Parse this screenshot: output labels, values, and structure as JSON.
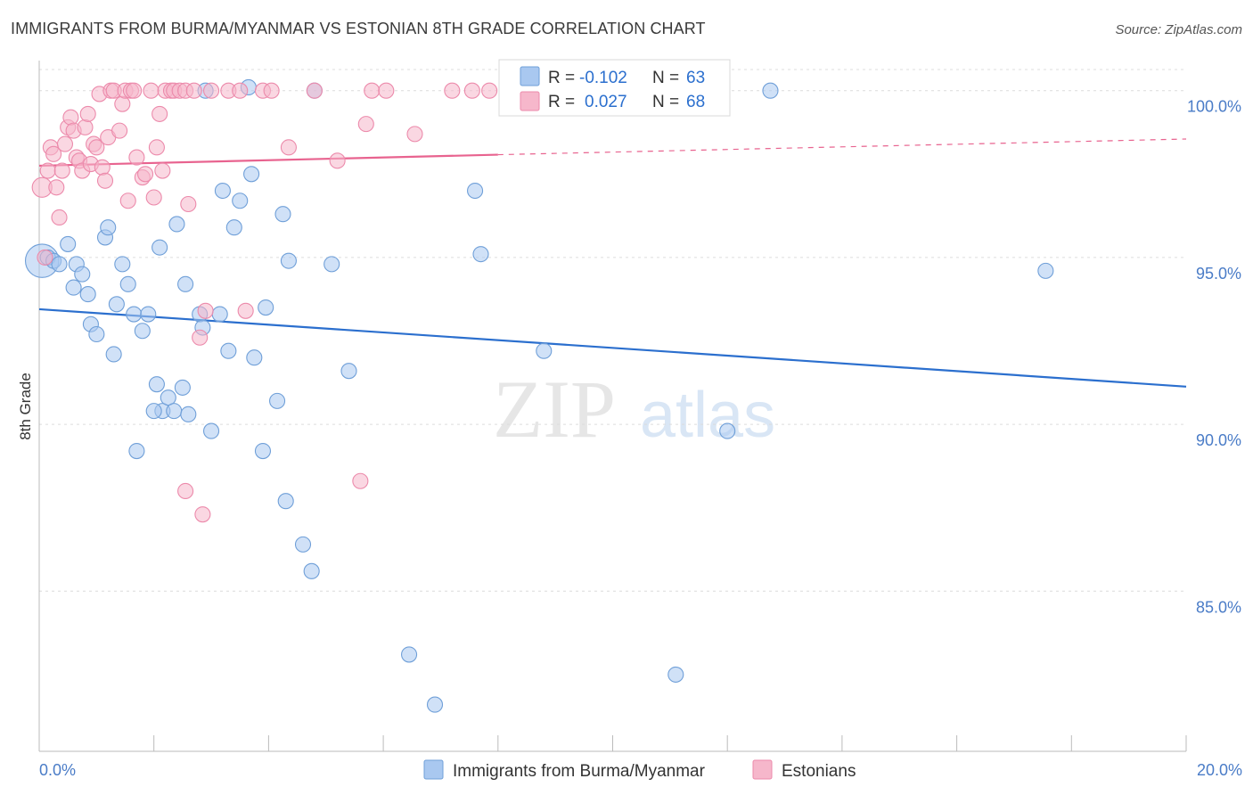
{
  "title": "IMMIGRANTS FROM BURMA/MYANMAR VS ESTONIAN 8TH GRADE CORRELATION CHART",
  "source": "Source: ZipAtlas.com",
  "watermark": {
    "zip": "ZIP",
    "atlas": "atlas"
  },
  "colors": {
    "blue_fill": "#a9c8f0",
    "blue_stroke": "#6f9fd8",
    "blue_line": "#2b6fce",
    "pink_fill": "#f6b7cb",
    "pink_stroke": "#ec8aab",
    "pink_line": "#e8638f",
    "tick_text": "#4a7cc7",
    "grid": "#dcdcdc"
  },
  "chart_data": {
    "type": "scatter",
    "xlim": [
      0,
      20
    ],
    "ylim": [
      80.2,
      100.9
    ],
    "xlabel": "",
    "ylabel": "8th Grade",
    "x_tick_labels": [
      "0.0%",
      "20.0%"
    ],
    "y_ticks": [
      85,
      90,
      95,
      100
    ],
    "y_tick_labels": [
      "85.0%",
      "90.0%",
      "95.0%",
      "100.0%"
    ],
    "legend": [
      {
        "label": "R = ",
        "r": "-0.102",
        "n_label": "N = ",
        "n": "63",
        "series": "blue"
      },
      {
        "label": "R = ",
        "r": "0.027",
        "n_label": "N = ",
        "n": "68",
        "series": "pink"
      }
    ],
    "series": [
      {
        "name": "Immigrants from Burma/Myanmar",
        "color": "blue",
        "trend": {
          "x0": 0,
          "y0": 93.45,
          "x1": 20,
          "y1": 91.13
        },
        "points": [
          [
            0.05,
            94.9,
            2.2
          ],
          [
            0.15,
            95.0,
            1
          ],
          [
            0.25,
            94.9,
            1
          ],
          [
            0.35,
            94.8,
            1
          ],
          [
            0.5,
            95.4,
            1
          ],
          [
            0.65,
            94.8,
            1
          ],
          [
            0.75,
            94.5,
            1
          ],
          [
            0.6,
            94.1,
            1
          ],
          [
            0.85,
            93.9,
            1
          ],
          [
            0.9,
            93.0,
            1
          ],
          [
            1.0,
            92.7,
            1
          ],
          [
            1.15,
            95.6,
            1
          ],
          [
            1.2,
            95.9,
            1
          ],
          [
            1.3,
            92.1,
            1
          ],
          [
            1.35,
            93.6,
            1
          ],
          [
            1.45,
            94.8,
            1
          ],
          [
            1.55,
            94.2,
            1
          ],
          [
            1.65,
            93.3,
            1
          ],
          [
            1.8,
            92.8,
            1
          ],
          [
            1.9,
            93.3,
            1
          ],
          [
            2.05,
            91.2,
            1
          ],
          [
            2.1,
            95.3,
            1
          ],
          [
            2.15,
            90.4,
            1
          ],
          [
            2.25,
            90.8,
            1
          ],
          [
            2.35,
            90.4,
            1
          ],
          [
            2.4,
            96.0,
            1
          ],
          [
            2.5,
            91.1,
            1
          ],
          [
            2.55,
            94.2,
            1
          ],
          [
            2.6,
            90.3,
            1
          ],
          [
            2.8,
            93.3,
            1
          ],
          [
            2.85,
            92.9,
            1
          ],
          [
            2.9,
            100.0,
            1
          ],
          [
            3.0,
            89.8,
            1
          ],
          [
            3.15,
            93.3,
            1
          ],
          [
            3.2,
            97.0,
            1
          ],
          [
            3.3,
            92.2,
            1
          ],
          [
            3.4,
            95.9,
            1
          ],
          [
            3.5,
            96.7,
            1
          ],
          [
            3.7,
            97.5,
            1
          ],
          [
            3.75,
            92.0,
            1
          ],
          [
            3.9,
            89.2,
            1
          ],
          [
            3.95,
            93.5,
            1
          ],
          [
            4.15,
            90.7,
            1
          ],
          [
            4.25,
            96.3,
            1
          ],
          [
            4.3,
            87.7,
            1
          ],
          [
            4.35,
            94.9,
            1
          ],
          [
            4.6,
            86.4,
            1
          ],
          [
            4.75,
            85.6,
            1
          ],
          [
            4.8,
            100.0,
            1
          ],
          [
            5.1,
            94.8,
            1
          ],
          [
            5.4,
            91.6,
            1
          ],
          [
            6.45,
            83.1,
            1
          ],
          [
            6.9,
            81.6,
            1
          ],
          [
            7.6,
            97.0,
            1
          ],
          [
            7.7,
            95.1,
            1
          ],
          [
            8.8,
            92.2,
            1
          ],
          [
            11.1,
            82.5,
            1
          ],
          [
            12.0,
            89.8,
            1
          ],
          [
            12.75,
            100.0,
            1
          ],
          [
            17.55,
            94.6,
            1
          ],
          [
            1.7,
            89.2,
            1
          ],
          [
            3.65,
            100.1,
            1
          ],
          [
            2.0,
            90.4,
            1
          ]
        ]
      },
      {
        "name": "Estonians",
        "color": "pink",
        "trend": {
          "x0": 0,
          "y0": 97.75,
          "x1": 8.0,
          "y1": 98.08,
          "dash_x1": 20,
          "dash_y1": 98.55
        },
        "points": [
          [
            0.05,
            97.1,
            1.3
          ],
          [
            0.1,
            95.0,
            1
          ],
          [
            0.15,
            97.6,
            1
          ],
          [
            0.2,
            98.3,
            1
          ],
          [
            0.25,
            98.1,
            1
          ],
          [
            0.3,
            97.1,
            1
          ],
          [
            0.35,
            96.2,
            1
          ],
          [
            0.4,
            97.6,
            1
          ],
          [
            0.45,
            98.4,
            1
          ],
          [
            0.5,
            98.9,
            1
          ],
          [
            0.55,
            99.2,
            1
          ],
          [
            0.6,
            98.8,
            1
          ],
          [
            0.65,
            98.0,
            1
          ],
          [
            0.7,
            97.9,
            1
          ],
          [
            0.75,
            97.6,
            1
          ],
          [
            0.8,
            98.9,
            1
          ],
          [
            0.85,
            99.3,
            1
          ],
          [
            0.9,
            97.8,
            1
          ],
          [
            0.95,
            98.4,
            1
          ],
          [
            1.0,
            98.3,
            1
          ],
          [
            1.05,
            99.9,
            1
          ],
          [
            1.1,
            97.7,
            1
          ],
          [
            1.15,
            97.3,
            1
          ],
          [
            1.2,
            98.6,
            1
          ],
          [
            1.25,
            100.0,
            1
          ],
          [
            1.3,
            100.0,
            1
          ],
          [
            1.4,
            98.8,
            1
          ],
          [
            1.45,
            99.6,
            1
          ],
          [
            1.5,
            100.0,
            1
          ],
          [
            1.55,
            96.7,
            1
          ],
          [
            1.6,
            100.0,
            1
          ],
          [
            1.65,
            100.0,
            1
          ],
          [
            1.7,
            98.0,
            1
          ],
          [
            1.8,
            97.4,
            1
          ],
          [
            1.85,
            97.5,
            1
          ],
          [
            1.95,
            100.0,
            1
          ],
          [
            2.0,
            96.8,
            1
          ],
          [
            2.05,
            98.3,
            1
          ],
          [
            2.1,
            99.3,
            1
          ],
          [
            2.15,
            97.6,
            1
          ],
          [
            2.2,
            100.0,
            1
          ],
          [
            2.3,
            100.0,
            1
          ],
          [
            2.35,
            100.0,
            1
          ],
          [
            2.45,
            100.0,
            1
          ],
          [
            2.55,
            100.0,
            1
          ],
          [
            2.6,
            96.6,
            1
          ],
          [
            2.7,
            100.0,
            1
          ],
          [
            2.8,
            92.6,
            1
          ],
          [
            2.9,
            93.4,
            1
          ],
          [
            3.0,
            100.0,
            1
          ],
          [
            3.3,
            100.0,
            1
          ],
          [
            3.5,
            100.0,
            1
          ],
          [
            3.6,
            93.4,
            1
          ],
          [
            3.9,
            100.0,
            1
          ],
          [
            4.05,
            100.0,
            1
          ],
          [
            4.35,
            98.3,
            1
          ],
          [
            4.8,
            100.0,
            1
          ],
          [
            5.2,
            97.9,
            1
          ],
          [
            5.6,
            88.3,
            1
          ],
          [
            5.7,
            99.0,
            1
          ],
          [
            5.8,
            100.0,
            1
          ],
          [
            6.05,
            100.0,
            1
          ],
          [
            6.55,
            98.7,
            1
          ],
          [
            7.2,
            100.0,
            1
          ],
          [
            7.55,
            100.0,
            1
          ],
          [
            7.85,
            100.0,
            1
          ],
          [
            2.55,
            88.0,
            1
          ],
          [
            2.85,
            87.3,
            1
          ]
        ]
      }
    ]
  }
}
